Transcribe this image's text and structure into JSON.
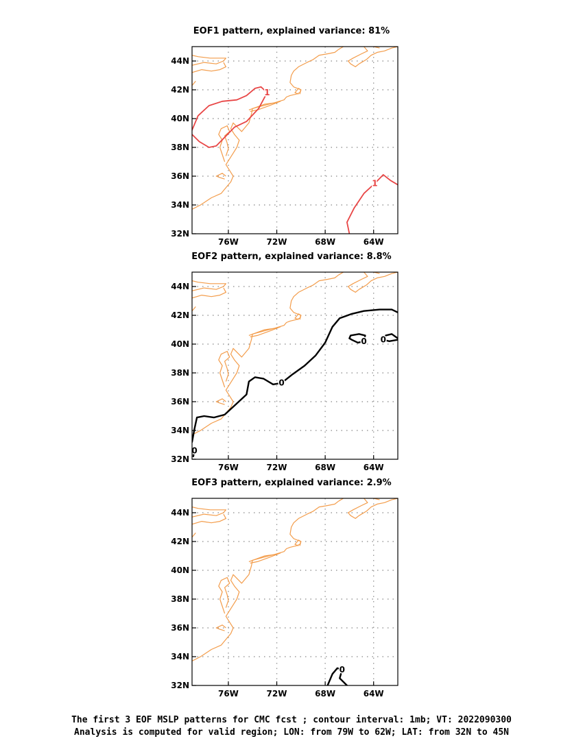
{
  "chart_data": [
    {
      "type": "contour",
      "title": "EOF1 pattern, explained variance: 81%",
      "xticks": [
        "76W",
        "72W",
        "68W",
        "64W"
      ],
      "yticks": [
        "32N",
        "34N",
        "36N",
        "38N",
        "40N",
        "42N",
        "44N"
      ],
      "xlim": [
        -79,
        -62
      ],
      "ylim": [
        32,
        45
      ],
      "grid": true,
      "contours": [
        {
          "level": 1,
          "label": "1",
          "color": "#e84545",
          "points": [
            [
              -79,
              39.2
            ],
            [
              -78.5,
              40.2
            ],
            [
              -77.6,
              40.9
            ],
            [
              -76.5,
              41.2
            ],
            [
              -75.3,
              41.3
            ],
            [
              -74.5,
              41.6
            ],
            [
              -73.8,
              42.1
            ],
            [
              -73.3,
              42.2
            ],
            [
              -72.8,
              41.8
            ],
            [
              -73.5,
              40.7
            ],
            [
              -74.5,
              39.8
            ],
            [
              -75.5,
              39.4
            ],
            [
              -76.3,
              38.7
            ],
            [
              -77,
              38.1
            ],
            [
              -77.6,
              38
            ],
            [
              -78.4,
              38.4
            ],
            [
              -79,
              38.9
            ]
          ]
        },
        {
          "level": 1,
          "label": "1",
          "color": "#e84545",
          "points": [
            [
              -66,
              32
            ],
            [
              -66.2,
              32.8
            ],
            [
              -65.6,
              33.8
            ],
            [
              -64.8,
              34.8
            ],
            [
              -63.9,
              35.5
            ],
            [
              -63.2,
              36.1
            ],
            [
              -62.6,
              35.7
            ],
            [
              -62,
              35.4
            ]
          ]
        }
      ]
    },
    {
      "type": "contour",
      "title": "EOF2 pattern, explained variance: 8.8%",
      "xticks": [
        "76W",
        "72W",
        "68W",
        "64W"
      ],
      "yticks": [
        "32N",
        "34N",
        "36N",
        "38N",
        "40N",
        "42N",
        "44N"
      ],
      "xlim": [
        -79,
        -62
      ],
      "ylim": [
        32,
        45
      ],
      "grid": true,
      "contours": [
        {
          "level": 0,
          "label": "0",
          "color": "#000000",
          "points": [
            [
              -79,
              33.2
            ],
            [
              -78.8,
              34.1
            ],
            [
              -78.6,
              34.9
            ],
            [
              -78,
              35
            ],
            [
              -77.2,
              34.9
            ],
            [
              -76.3,
              35.1
            ],
            [
              -75.4,
              35.8
            ],
            [
              -74.5,
              36.5
            ],
            [
              -74.3,
              37.4
            ],
            [
              -73.8,
              37.7
            ],
            [
              -73.1,
              37.6
            ],
            [
              -72.3,
              37.2
            ],
            [
              -71.6,
              37.3
            ],
            [
              -70.7,
              37.9
            ],
            [
              -69.7,
              38.5
            ],
            [
              -68.8,
              39.2
            ],
            [
              -68,
              40.1
            ],
            [
              -67.4,
              41.2
            ],
            [
              -66.8,
              41.8
            ],
            [
              -65.8,
              42.1
            ],
            [
              -64.8,
              42.3
            ],
            [
              -63.5,
              42.4
            ],
            [
              -62.5,
              42.4
            ],
            [
              -62,
              42.2
            ]
          ]
        },
        {
          "level": 0,
          "label": "0",
          "color": "#000000",
          "points": [
            [
              -66,
              40.4
            ],
            [
              -65.9,
              40.6
            ],
            [
              -65.2,
              40.7
            ],
            [
              -64.7,
              40.6
            ],
            [
              -64.8,
              40.2
            ],
            [
              -65.3,
              40.1
            ],
            [
              -65.8,
              40.3
            ],
            [
              -66,
              40.4
            ]
          ]
        },
        {
          "level": 0,
          "label": "0",
          "color": "#000000",
          "points": [
            [
              -62,
              40.4
            ],
            [
              -62.5,
              40.7
            ],
            [
              -63,
              40.6
            ],
            [
              -63.2,
              40.3
            ],
            [
              -62.7,
              40.2
            ],
            [
              -62,
              40.3
            ]
          ]
        },
        {
          "level": 0,
          "label": "0",
          "color": "#000000",
          "points": [
            [
              -79,
              32.4
            ],
            [
              -78.8,
              32.6
            ],
            [
              -78.9,
              32.2
            ]
          ]
        }
      ]
    },
    {
      "type": "contour",
      "title": "EOF3 pattern, explained variance: 2.9%",
      "xticks": [
        "76W",
        "72W",
        "68W",
        "64W"
      ],
      "yticks": [
        "32N",
        "34N",
        "36N",
        "38N",
        "40N",
        "42N",
        "44N"
      ],
      "xlim": [
        -79,
        -62
      ],
      "ylim": [
        32,
        45
      ],
      "grid": true,
      "contours": [
        {
          "level": 0,
          "label": "0",
          "color": "#000000",
          "points": [
            [
              -67.8,
              32
            ],
            [
              -67.4,
              32.8
            ],
            [
              -67,
              33.2
            ],
            [
              -66.6,
              33.1
            ],
            [
              -66.8,
              32.5
            ],
            [
              -66.2,
              32
            ]
          ]
        }
      ]
    }
  ],
  "coastline_color": "#f39c4a",
  "captions": {
    "line1": "The first 3 EOF MSLP patterns for CMC fcst ; contour interval: 1mb; VT: 2022090300",
    "line2": "Analysis is computed for valid region; LON: from 79W to 62W; LAT: from 32N to 45N"
  }
}
